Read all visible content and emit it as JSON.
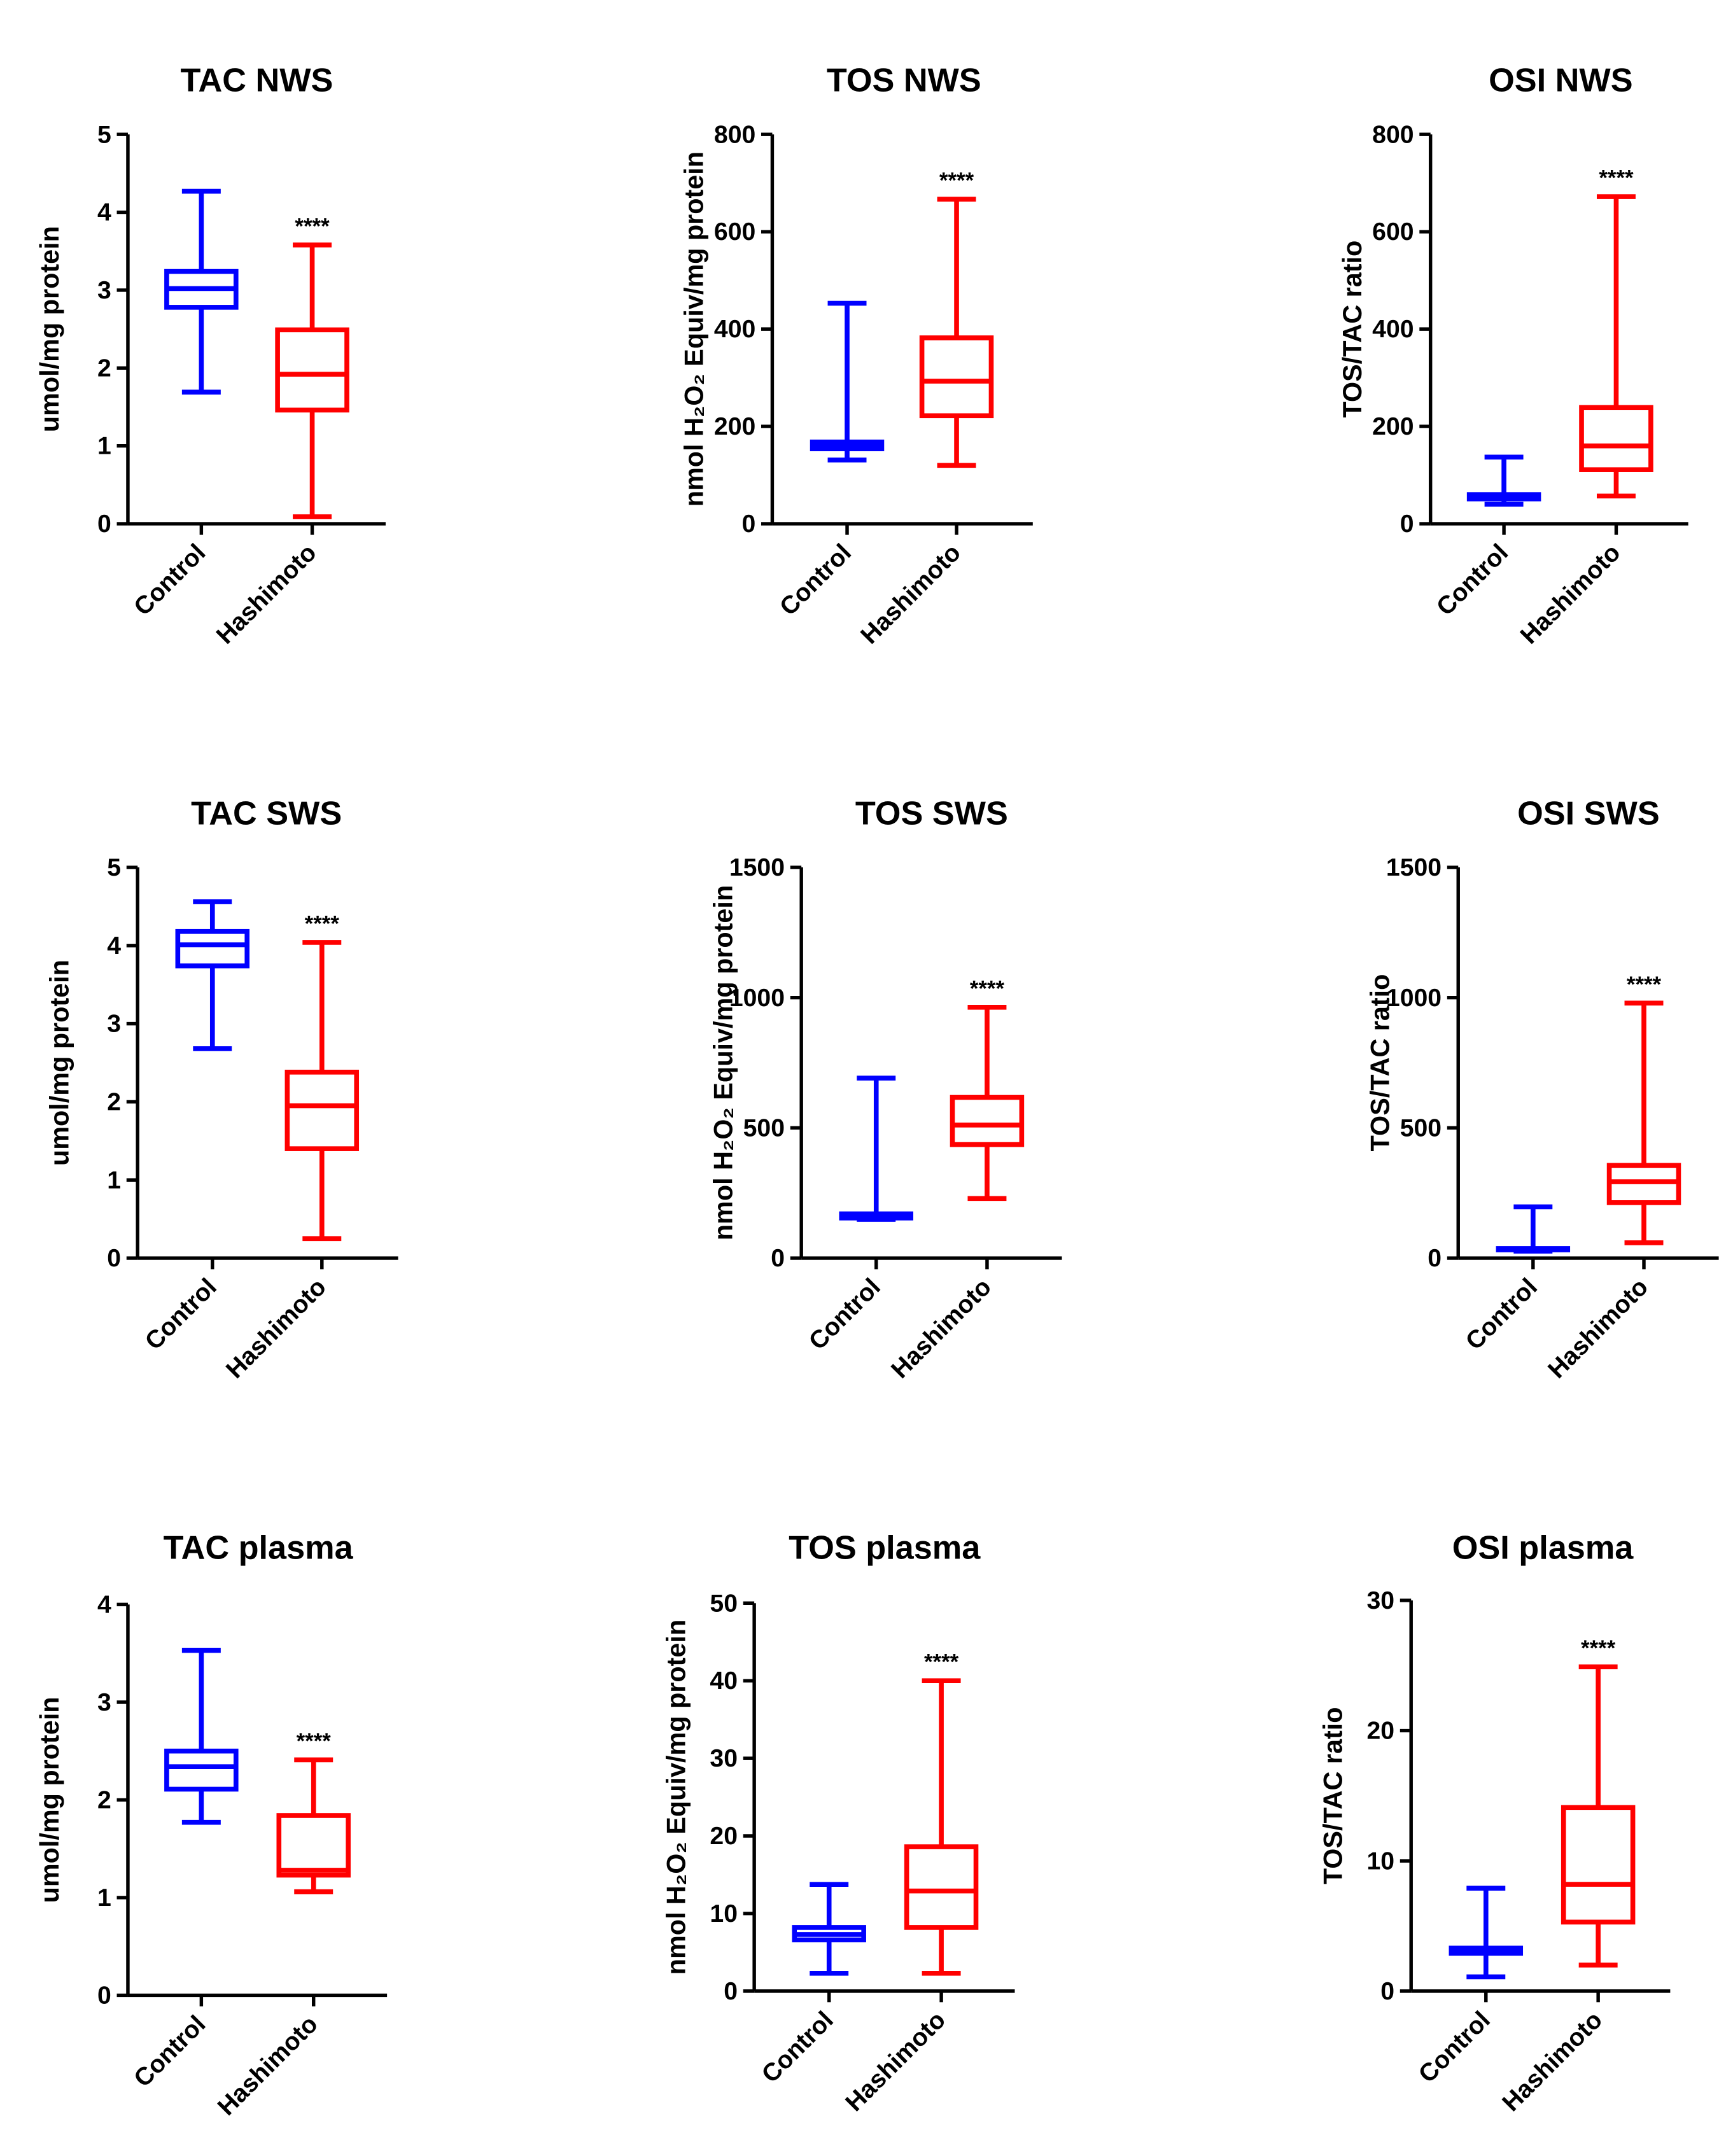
{
  "colors": {
    "Control": "#0000ff",
    "Hashimoto": "#ff0000",
    "axis": "#000000"
  },
  "chart_data": [
    {
      "type": "box",
      "title": "TAC NWS",
      "ylabel": "umol/mg protein",
      "ylim": [
        0,
        5
      ],
      "yticks": [
        "0",
        "1",
        "2",
        "3",
        "4",
        "5"
      ],
      "categories": [
        "Control",
        "Hashimoto"
      ],
      "significance": "****",
      "series": [
        {
          "name": "Control",
          "min": 1.69,
          "q1": 2.78,
          "median": 3.02,
          "q3": 3.24,
          "max": 4.27
        },
        {
          "name": "Hashimoto",
          "min": 0.09,
          "q1": 1.46,
          "median": 1.92,
          "q3": 2.49,
          "max": 3.58
        }
      ]
    },
    {
      "type": "box",
      "title": "TOS NWS",
      "ylabel": "nmol H₂O₂ Equiv/mg protein",
      "ylim": [
        0,
        800
      ],
      "yticks": [
        "0",
        "200",
        "400",
        "600",
        "800"
      ],
      "categories": [
        "Control",
        "Hashimoto"
      ],
      "significance": "****",
      "series": [
        {
          "name": "Control",
          "min": 131,
          "q1": 154,
          "median": 160,
          "q3": 168,
          "max": 453
        },
        {
          "name": "Hashimoto",
          "min": 120,
          "q1": 222,
          "median": 293,
          "q3": 382,
          "max": 667
        }
      ]
    },
    {
      "type": "box",
      "title": "OSI NWS",
      "ylabel": "TOS/TAC ratio",
      "ylim": [
        0,
        800
      ],
      "yticks": [
        "0",
        "200",
        "400",
        "600",
        "800"
      ],
      "categories": [
        "Control",
        "Hashimoto"
      ],
      "significance": "****",
      "series": [
        {
          "name": "Control",
          "min": 40,
          "q1": 51,
          "median": 57,
          "q3": 60,
          "max": 137
        },
        {
          "name": "Hashimoto",
          "min": 57,
          "q1": 111,
          "median": 160,
          "q3": 239,
          "max": 672
        }
      ]
    },
    {
      "type": "box",
      "title": "TAC SWS",
      "ylabel": "umol/mg protein",
      "ylim": [
        0,
        5
      ],
      "yticks": [
        "0",
        "1",
        "2",
        "3",
        "4",
        "5"
      ],
      "categories": [
        "Control",
        "Hashimoto"
      ],
      "significance": "****",
      "series": [
        {
          "name": "Control",
          "min": 2.68,
          "q1": 3.74,
          "median": 4.01,
          "q3": 4.18,
          "max": 4.56
        },
        {
          "name": "Hashimoto",
          "min": 0.25,
          "q1": 1.4,
          "median": 1.95,
          "q3": 2.38,
          "max": 4.04
        }
      ]
    },
    {
      "type": "box",
      "title": "TOS SWS",
      "ylabel": "nmol H₂O₂ Equiv/mg protein",
      "ylim": [
        0,
        1500
      ],
      "yticks": [
        "0",
        "500",
        "1000",
        "1500"
      ],
      "categories": [
        "Control",
        "Hashimoto"
      ],
      "significance": "****",
      "series": [
        {
          "name": "Control",
          "min": 149,
          "q1": 154,
          "median": 165,
          "q3": 170,
          "max": 691
        },
        {
          "name": "Hashimoto",
          "min": 229,
          "q1": 436,
          "median": 511,
          "q3": 617,
          "max": 963
        }
      ]
    },
    {
      "type": "box",
      "title": "OSI SWS",
      "ylabel": "TOS/TAC ratio",
      "ylim": [
        0,
        1500
      ],
      "yticks": [
        "0",
        "500",
        "1000",
        "1500"
      ],
      "categories": [
        "Control",
        "Hashimoto"
      ],
      "significance": "****",
      "series": [
        {
          "name": "Control",
          "min": 27,
          "q1": 32,
          "median": 35,
          "q3": 37,
          "max": 197
        },
        {
          "name": "Hashimoto",
          "min": 59,
          "q1": 213,
          "median": 293,
          "q3": 356,
          "max": 979
        }
      ]
    },
    {
      "type": "box",
      "title": "TAC plasma",
      "ylabel": "umol/mg protein",
      "ylim": [
        0,
        4
      ],
      "yticks": [
        "0",
        "1",
        "2",
        "3",
        "4"
      ],
      "categories": [
        "Control",
        "Hashimoto"
      ],
      "significance": "****",
      "series": [
        {
          "name": "Control",
          "min": 1.77,
          "q1": 2.11,
          "median": 2.34,
          "q3": 2.5,
          "max": 3.53
        },
        {
          "name": "Hashimoto",
          "min": 1.06,
          "q1": 1.23,
          "median": 1.28,
          "q3": 1.84,
          "max": 2.41
        }
      ]
    },
    {
      "type": "box",
      "title": "TOS plasma",
      "ylabel": "nmol H₂O₂ Equiv/mg protein",
      "ylim": [
        0,
        50
      ],
      "yticks": [
        "0",
        "10",
        "20",
        "30",
        "40",
        "50"
      ],
      "categories": [
        "Control",
        "Hashimoto"
      ],
      "significance": "****",
      "series": [
        {
          "name": "Control",
          "min": 2.3,
          "q1": 6.6,
          "median": 7.3,
          "q3": 8.2,
          "max": 13.75
        },
        {
          "name": "Hashimoto",
          "min": 2.3,
          "q1": 8.2,
          "median": 12.9,
          "q3": 18.6,
          "max": 40
        }
      ]
    },
    {
      "type": "box",
      "title": "OSI plasma",
      "ylabel": "TOS/TAC ratio",
      "ylim": [
        0,
        30
      ],
      "yticks": [
        "0",
        "10",
        "20",
        "30"
      ],
      "categories": [
        "Control",
        "Hashimoto"
      ],
      "significance": "****",
      "series": [
        {
          "name": "Control",
          "min": 1.1,
          "q1": 2.9,
          "median": 3.1,
          "q3": 3.3,
          "max": 7.9
        },
        {
          "name": "Hashimoto",
          "min": 2.0,
          "q1": 5.3,
          "median": 8.2,
          "q3": 14.1,
          "max": 24.9
        }
      ]
    }
  ]
}
